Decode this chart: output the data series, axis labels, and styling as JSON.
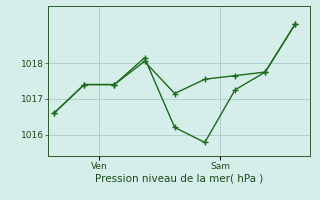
{
  "line1_x": [
    0,
    1,
    2,
    3,
    4,
    5,
    6,
    7,
    8
  ],
  "line1_y": [
    1016.6,
    1017.4,
    1017.4,
    1018.05,
    1017.15,
    1017.55,
    1017.65,
    1017.75,
    1019.1
  ],
  "line2_x": [
    0,
    1,
    2,
    3,
    4,
    5,
    6,
    7,
    8
  ],
  "line2_y": [
    1016.6,
    1017.4,
    1017.4,
    1018.15,
    1016.2,
    1015.78,
    1017.25,
    1017.75,
    1019.1
  ],
  "color": "#1a6b1a",
  "bg_color": "#d6eeea",
  "grid_color": "#b0cece",
  "xlabel": "Pression niveau de la mer( hPa )",
  "ylim_min": 1015.4,
  "ylim_max": 1019.6,
  "yticks": [
    1016,
    1017,
    1018
  ],
  "ven_x": 1.5,
  "sam_x": 5.5,
  "xlim_min": -0.2,
  "xlim_max": 8.5
}
